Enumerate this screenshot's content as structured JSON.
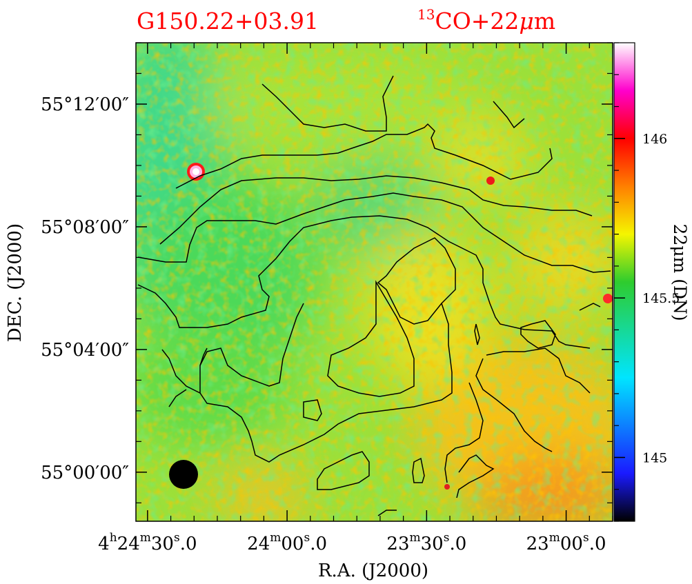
{
  "chart_data": {
    "type": "heatmap",
    "title_left": "G150.22+03.91",
    "title_right_sup": "13",
    "title_right_main": "CO+22",
    "title_right_mu": "μ",
    "title_right_unit": "m",
    "xlabel": "R.A. (J2000)",
    "ylabel": "DEC. (J2000)",
    "colorbar_label": "22μm (DN)",
    "x_ticks": [
      {
        "h": "4",
        "m": "24",
        "s": "30",
        "frac": "0",
        "sep": "."
      },
      {
        "m": "24",
        "s": "00",
        "frac": "0",
        "sep": "."
      },
      {
        "m": "23",
        "s": "30",
        "frac": "0",
        "sep": "."
      },
      {
        "m": "23",
        "s": "00",
        "frac": "0",
        "sep": "."
      }
    ],
    "x_tick_sec_offsets": [
      0,
      30,
      60,
      90
    ],
    "y_ticks": [
      "55°12′00″",
      "55°08′00″",
      "55°04′00″",
      "55°00′00″"
    ],
    "y_tick_arcmin": [
      12,
      8,
      4,
      0
    ],
    "xlim_sec_offset": [
      -2.5,
      100
    ],
    "ylim_arcmin": [
      -1.6,
      14.0
    ],
    "colorbar_ticks": [
      146,
      145.5,
      145
    ],
    "colorbar_range": [
      144.8,
      146.3
    ],
    "colorbar_palette": [
      "#000000",
      "#1a1aff",
      "#00e5ff",
      "#2ecc2e",
      "#f5f500",
      "#ff7f00",
      "#ff0000",
      "#ff00cc",
      "#ffffff"
    ],
    "contour_color": "#000000",
    "beam_shape": "circle",
    "beam_color": "#000000",
    "title_color": "#ff0000"
  }
}
